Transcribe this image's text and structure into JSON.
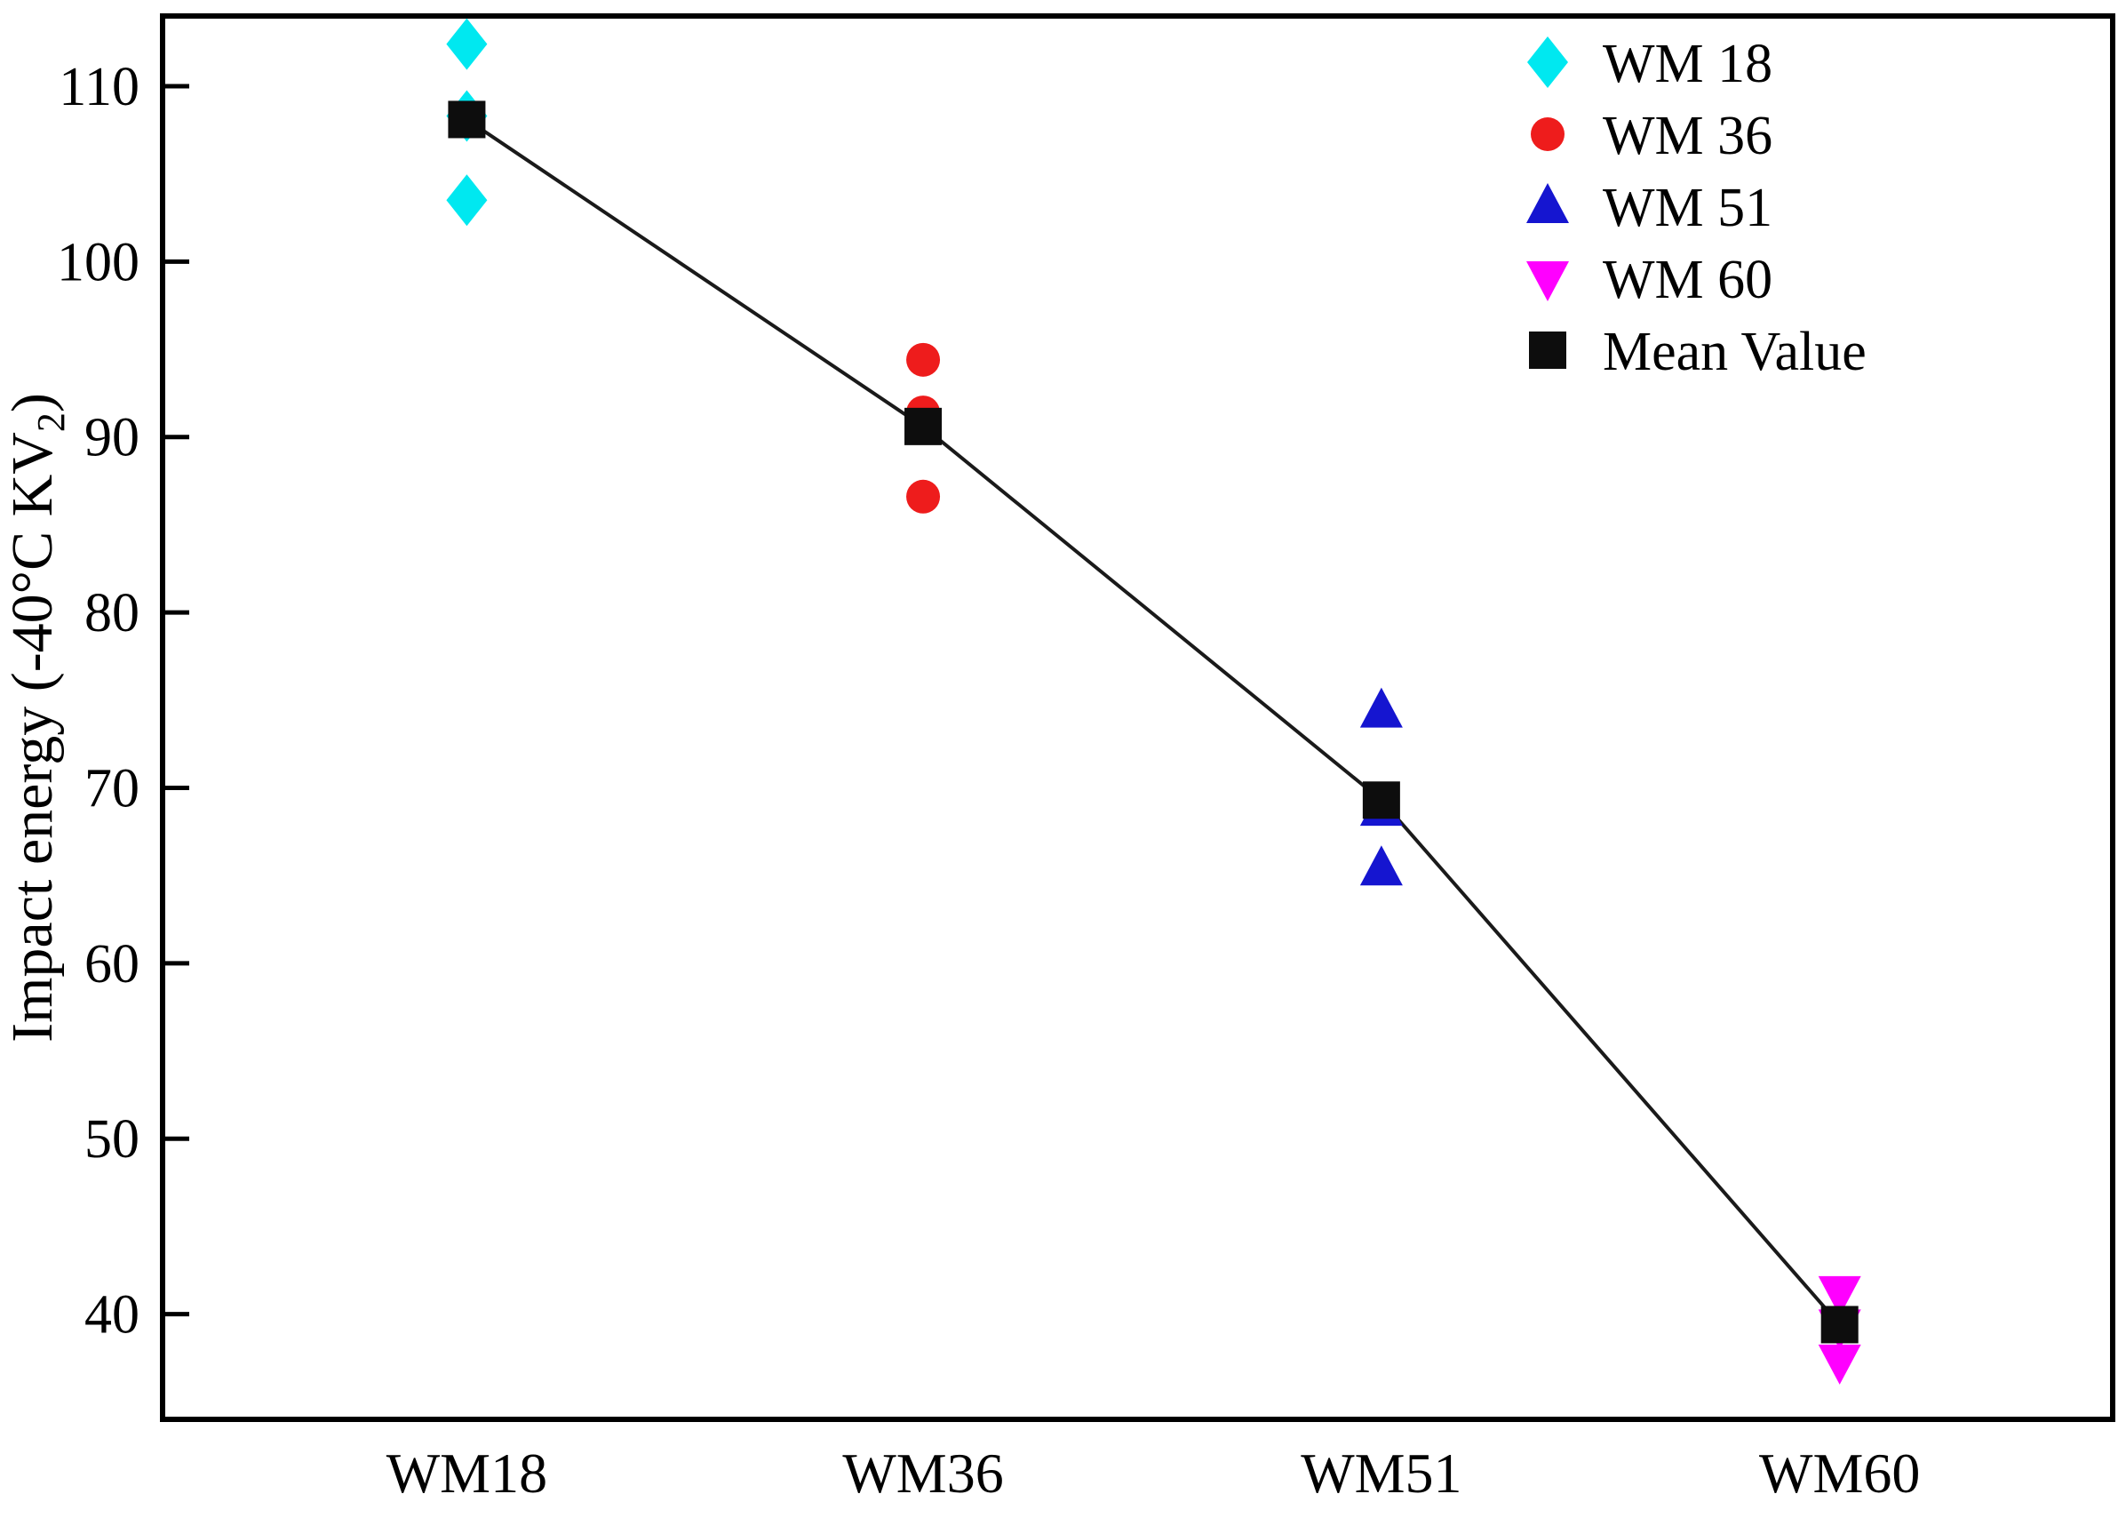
{
  "chart_data": {
    "type": "scatter",
    "title": "",
    "xlabel": "",
    "ylabel_prefix": "Impact energy (-40°C KV",
    "ylabel_sub": "2",
    "ylabel_suffix": ")",
    "categories": [
      "WM18",
      "WM36",
      "WM51",
      "WM60"
    ],
    "yticks": [
      40,
      50,
      60,
      70,
      80,
      90,
      100,
      110
    ],
    "ylim": [
      34,
      114
    ],
    "grid": false,
    "legend_position": "top-right",
    "series": [
      {
        "name": "WM 18",
        "marker": "diamond",
        "color": "#00e8f0",
        "category_index": 0,
        "values": [
          112.4,
          108.3,
          103.5
        ]
      },
      {
        "name": "WM 36",
        "marker": "circle",
        "color": "#ee1c1c",
        "category_index": 1,
        "values": [
          94.4,
          91.4,
          86.6
        ]
      },
      {
        "name": "WM 51",
        "marker": "triangle-up",
        "color": "#1515d0",
        "category_index": 2,
        "values": [
          74.4,
          68.8,
          65.4
        ]
      },
      {
        "name": "WM 60",
        "marker": "triangle-down",
        "color": "#ff00ff",
        "category_index": 3,
        "values": [
          41.2,
          39.3,
          37.3
        ]
      }
    ],
    "mean_series": {
      "name": "Mean Value",
      "marker": "square",
      "color": "#0d0d0d",
      "values": [
        108.1,
        90.6,
        69.3,
        39.4
      ]
    },
    "legend": [
      {
        "label": "WM 18",
        "marker": "diamond",
        "color": "#00e8f0"
      },
      {
        "label": "WM 36",
        "marker": "circle",
        "color": "#ee1c1c"
      },
      {
        "label": "WM 51",
        "marker": "triangle-up",
        "color": "#1515d0"
      },
      {
        "label": "WM 60",
        "marker": "triangle-down",
        "color": "#ff00ff"
      },
      {
        "label": "Mean Value",
        "marker": "square",
        "color": "#0d0d0d"
      }
    ],
    "frame_color": "#000000",
    "line_color": "#1a1a1a"
  }
}
